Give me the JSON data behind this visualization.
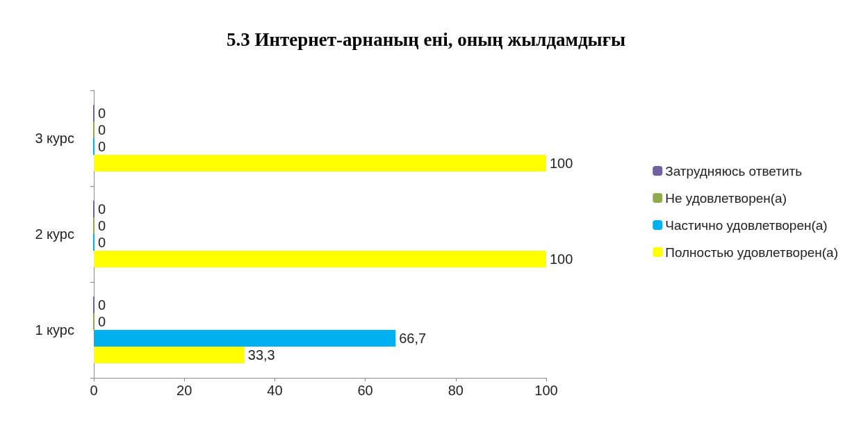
{
  "chart_data": {
    "type": "bar",
    "orientation": "horizontal",
    "title": "5.3 Интернет-арнаның ені, оның жылдамдығы",
    "categories": [
      "3 курс",
      "2 курс",
      "1 курс"
    ],
    "series": [
      {
        "name": "Затрудняюсь ответить",
        "color": "#7060a0",
        "values": [
          0,
          0,
          0
        ],
        "value_labels": [
          "0",
          "0",
          "0"
        ]
      },
      {
        "name": "Не удовлетворен(а)",
        "color": "#8faa4f",
        "values": [
          0,
          0,
          0
        ],
        "value_labels": [
          "0",
          "0",
          "0"
        ]
      },
      {
        "name": "Частично удовлетворен(а)",
        "color": "#00b0f0",
        "values": [
          0,
          0,
          66.7
        ],
        "value_labels": [
          "0",
          "0",
          "66,7"
        ]
      },
      {
        "name": "Полностью удовлетворен(а)",
        "color": "#ffff00",
        "values": [
          100,
          100,
          33.3
        ],
        "value_labels": [
          "100",
          "100",
          "33,3"
        ]
      }
    ],
    "xlim": [
      0,
      100
    ],
    "xticks": [
      0,
      20,
      40,
      60,
      80,
      100
    ],
    "grid": false,
    "legend": "right"
  }
}
